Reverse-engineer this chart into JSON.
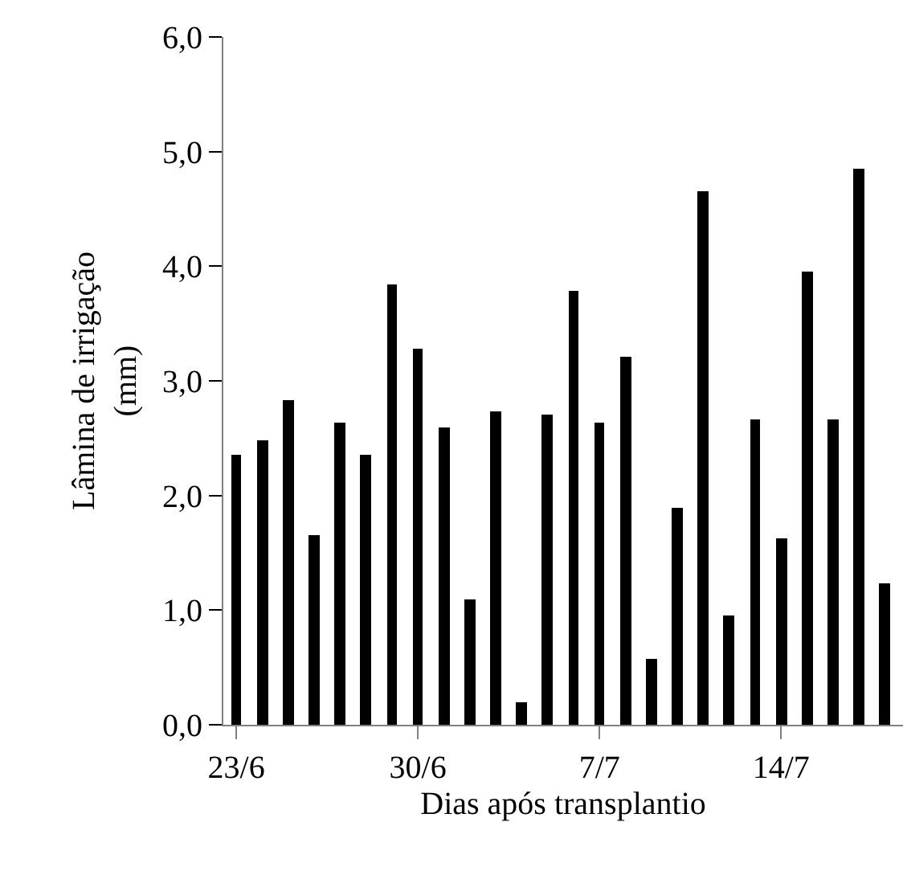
{
  "chart_data": {
    "type": "bar",
    "xlabel": "Dias após transplantio",
    "ylabel": "Lâmina de irrigação (mm)",
    "categories": [
      "23/6",
      null,
      null,
      null,
      null,
      null,
      null,
      "30/6",
      null,
      null,
      null,
      null,
      null,
      null,
      "7/7",
      null,
      null,
      null,
      null,
      null,
      null,
      "14/7",
      null,
      null,
      null,
      null
    ],
    "values": [
      2.35,
      2.48,
      2.83,
      1.66,
      2.64,
      2.35,
      3.84,
      3.28,
      2.6,
      1.09,
      2.74,
      0.19,
      2.71,
      3.79,
      2.64,
      3.21,
      0.57,
      1.89,
      4.65,
      0.95,
      2.67,
      1.62,
      3.95,
      2.67,
      4.85,
      1.24
    ],
    "color": "#000000",
    "ylim": [
      0,
      6
    ],
    "yticks": [
      {
        "value": 0,
        "label": "0,0"
      },
      {
        "value": 1,
        "label": "1,0"
      },
      {
        "value": 2,
        "label": "2,0"
      },
      {
        "value": 3,
        "label": "3,0"
      },
      {
        "value": 4,
        "label": "4,0"
      },
      {
        "value": 5,
        "label": "5,0"
      },
      {
        "value": 6,
        "label": "6,0"
      }
    ]
  }
}
